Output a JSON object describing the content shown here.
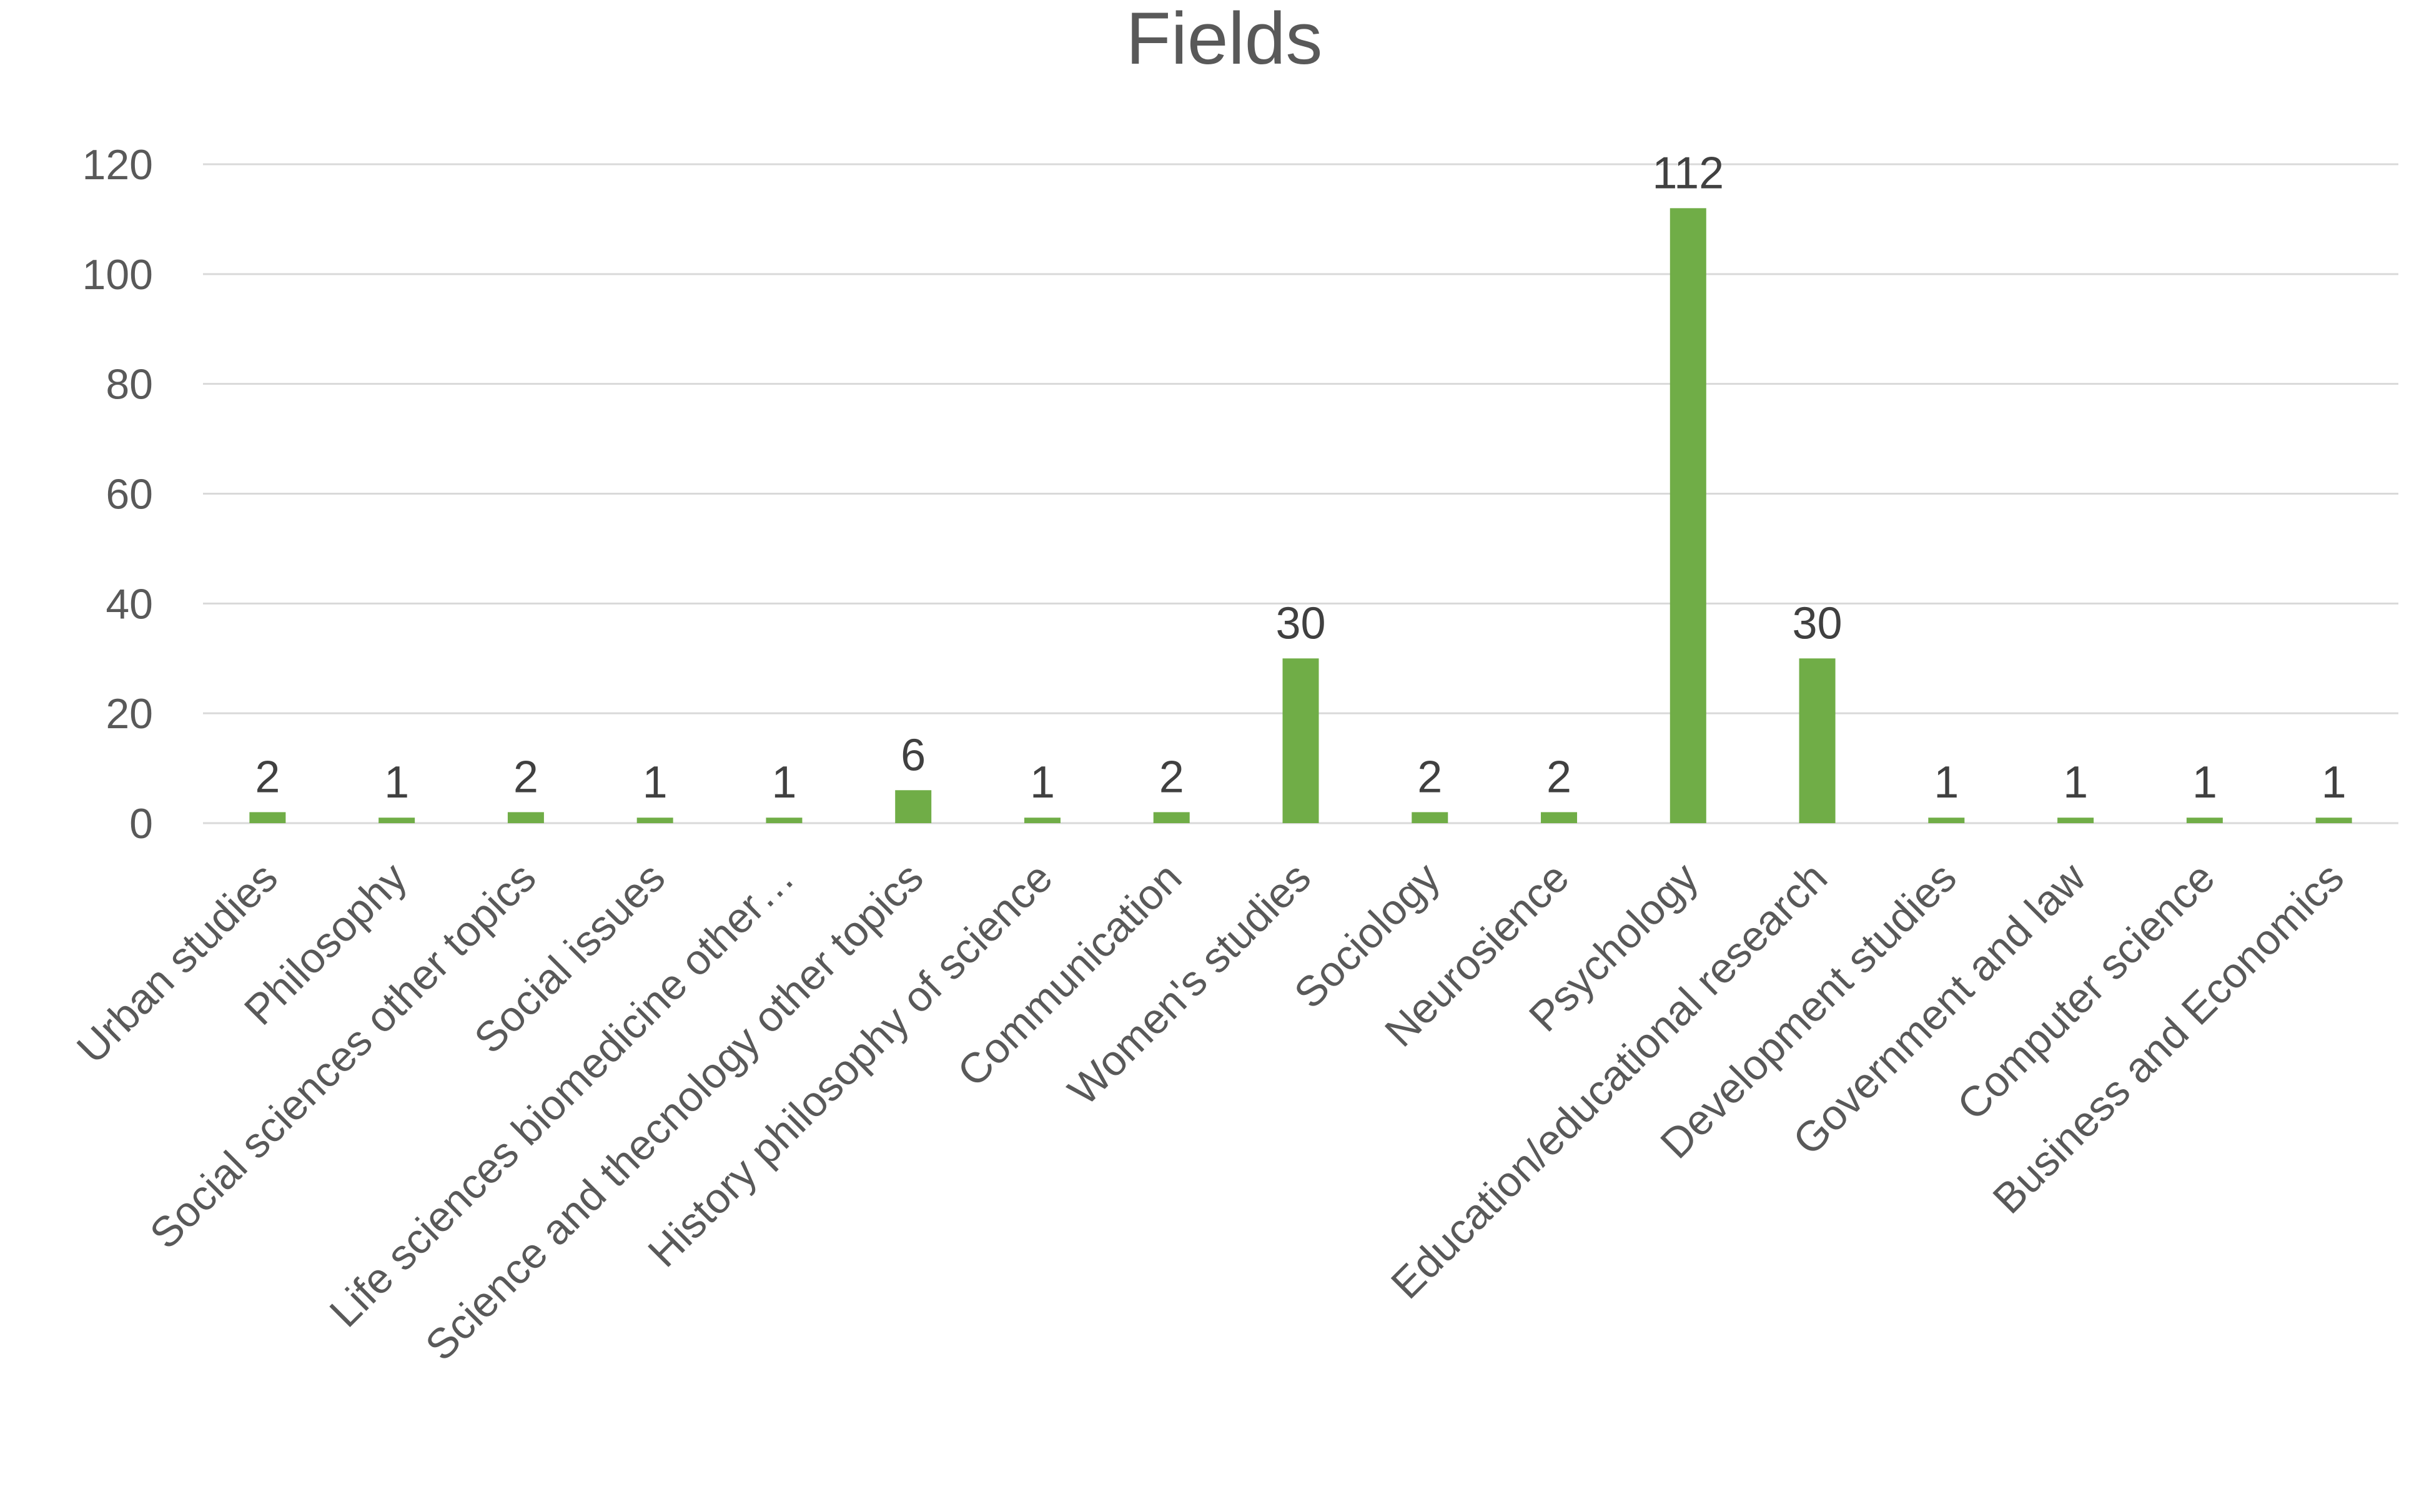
{
  "chart_data": {
    "type": "bar",
    "title": "Fields",
    "xlabel": "",
    "ylabel": "",
    "ylim": [
      0,
      120
    ],
    "yticks": [
      0,
      20,
      40,
      60,
      80,
      100,
      120
    ],
    "grid": true,
    "legend": "none",
    "bar_color": "#70ad47",
    "categories": [
      "Urban studies",
      "Philosophy",
      "Social sciences other topics",
      "Social issues",
      "Life sciences biomedicine other…",
      "Science and thecnology other topics",
      "History philosophy of science",
      "Communication",
      "Women's studies",
      "Sociology",
      "Neurosience",
      "Psychology",
      "Education/educational research",
      "Development studies",
      "Government and law",
      "Computer science",
      "Business and Economics"
    ],
    "values": [
      2,
      1,
      2,
      1,
      1,
      6,
      1,
      2,
      30,
      2,
      2,
      112,
      30,
      1,
      1,
      1,
      1
    ]
  }
}
